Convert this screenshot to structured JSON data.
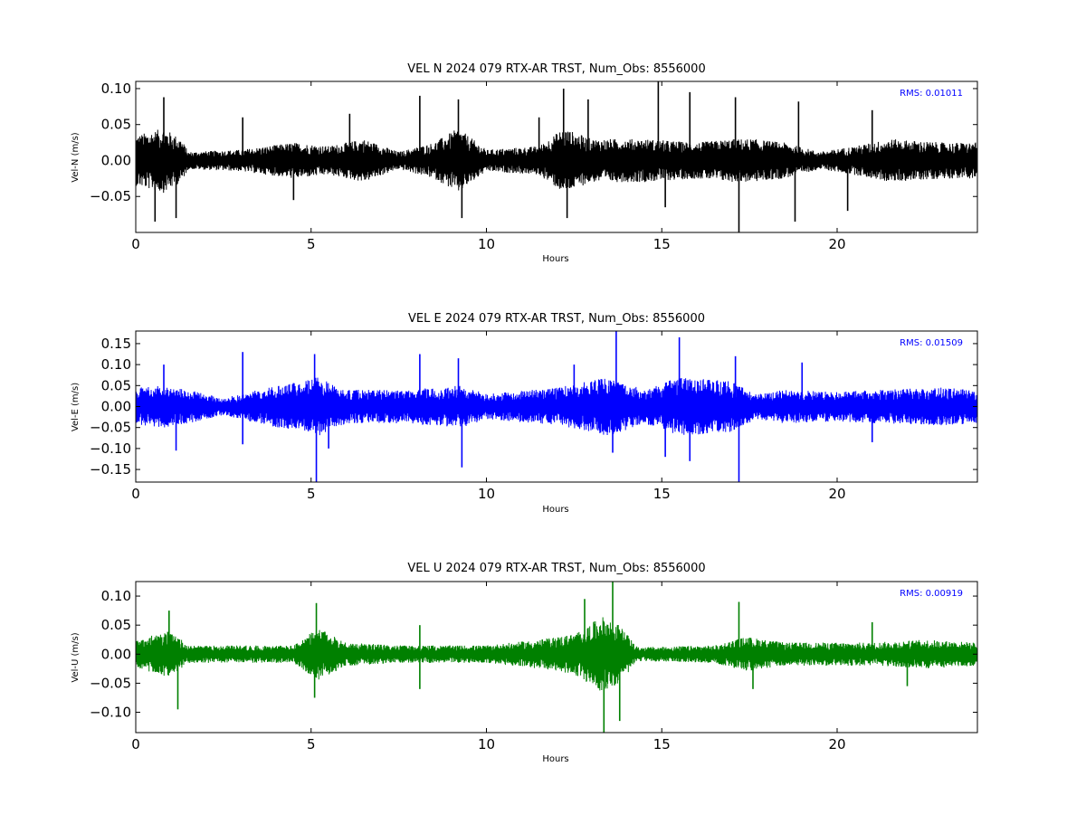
{
  "figure": {
    "background": "#ffffff",
    "axis_color": "#000000",
    "rms_color": "#0000ff"
  },
  "chart_data": [
    {
      "type": "line",
      "title": "VEL N 2024 079 RTX-AR  TRST, Num_Obs: 8556000",
      "xlabel": "Hours",
      "ylabel": "Vel-N (m/s)",
      "xlim": [
        0,
        24
      ],
      "ylim": [
        -0.1,
        0.11
      ],
      "xticks": [
        0,
        5,
        10,
        15,
        20
      ],
      "xtick_labels": [
        "0",
        "5",
        "10",
        "15",
        "20"
      ],
      "yticks": [
        -0.05,
        0.0,
        0.05,
        0.1
      ],
      "ytick_labels": [
        "−0.05",
        "0.00",
        "0.05",
        "0.10"
      ],
      "rms_label": "RMS:  0.01011",
      "rms": 0.01011,
      "color": "#000000",
      "grid": false,
      "noise_envelope": [
        {
          "x": 0.0,
          "a": 0.035
        },
        {
          "x": 0.8,
          "a": 0.045
        },
        {
          "x": 1.3,
          "a": 0.03
        },
        {
          "x": 1.5,
          "a": 0.012
        },
        {
          "x": 3.0,
          "a": 0.015
        },
        {
          "x": 4.5,
          "a": 0.025
        },
        {
          "x": 5.5,
          "a": 0.02
        },
        {
          "x": 6.5,
          "a": 0.03
        },
        {
          "x": 7.5,
          "a": 0.012
        },
        {
          "x": 8.5,
          "a": 0.025
        },
        {
          "x": 9.2,
          "a": 0.045
        },
        {
          "x": 10.0,
          "a": 0.015
        },
        {
          "x": 11.5,
          "a": 0.02
        },
        {
          "x": 12.2,
          "a": 0.045
        },
        {
          "x": 13.0,
          "a": 0.03
        },
        {
          "x": 14.5,
          "a": 0.03
        },
        {
          "x": 16.0,
          "a": 0.025
        },
        {
          "x": 17.0,
          "a": 0.03
        },
        {
          "x": 17.6,
          "a": 0.03
        },
        {
          "x": 18.5,
          "a": 0.025
        },
        {
          "x": 19.5,
          "a": 0.012
        },
        {
          "x": 20.5,
          "a": 0.02
        },
        {
          "x": 21.5,
          "a": 0.03
        },
        {
          "x": 23.0,
          "a": 0.025
        },
        {
          "x": 24.0,
          "a": 0.025
        }
      ],
      "spikes": [
        {
          "x": 0.55,
          "y": -0.085
        },
        {
          "x": 0.8,
          "y": 0.088
        },
        {
          "x": 1.15,
          "y": -0.08
        },
        {
          "x": 3.05,
          "y": 0.06
        },
        {
          "x": 4.5,
          "y": -0.055
        },
        {
          "x": 6.1,
          "y": 0.065
        },
        {
          "x": 8.1,
          "y": 0.09
        },
        {
          "x": 9.2,
          "y": 0.085
        },
        {
          "x": 9.3,
          "y": -0.08
        },
        {
          "x": 11.5,
          "y": 0.06
        },
        {
          "x": 12.2,
          "y": 0.1
        },
        {
          "x": 12.3,
          "y": -0.08
        },
        {
          "x": 12.9,
          "y": 0.085
        },
        {
          "x": 14.9,
          "y": 0.11
        },
        {
          "x": 15.1,
          "y": -0.065
        },
        {
          "x": 15.8,
          "y": 0.095
        },
        {
          "x": 17.2,
          "y": -0.1
        },
        {
          "x": 17.1,
          "y": 0.088
        },
        {
          "x": 18.8,
          "y": -0.085
        },
        {
          "x": 18.9,
          "y": 0.082
        },
        {
          "x": 20.3,
          "y": -0.07
        },
        {
          "x": 21.0,
          "y": 0.07
        }
      ]
    },
    {
      "type": "line",
      "title": "VEL E 2024 079 RTX-AR  TRST, Num_Obs: 8556000",
      "xlabel": "Hours",
      "ylabel": "Vel-E (m/s)",
      "xlim": [
        0,
        24
      ],
      "ylim": [
        -0.18,
        0.18
      ],
      "xticks": [
        0,
        5,
        10,
        15,
        20
      ],
      "xtick_labels": [
        "0",
        "5",
        "10",
        "15",
        "20"
      ],
      "yticks": [
        -0.15,
        -0.1,
        -0.05,
        0.0,
        0.05,
        0.1,
        0.15
      ],
      "ytick_labels": [
        "−0.15",
        "−0.10",
        "−0.05",
        "0.00",
        "0.05",
        "0.10",
        "0.15"
      ],
      "rms_label": "RMS:  0.01509",
      "rms": 0.01509,
      "color": "#0000ff",
      "grid": false,
      "noise_envelope": [
        {
          "x": 0.0,
          "a": 0.045
        },
        {
          "x": 0.8,
          "a": 0.05
        },
        {
          "x": 1.5,
          "a": 0.04
        },
        {
          "x": 2.5,
          "a": 0.02
        },
        {
          "x": 3.5,
          "a": 0.04
        },
        {
          "x": 5.2,
          "a": 0.07
        },
        {
          "x": 6.0,
          "a": 0.04
        },
        {
          "x": 7.5,
          "a": 0.04
        },
        {
          "x": 9.3,
          "a": 0.05
        },
        {
          "x": 10.0,
          "a": 0.03
        },
        {
          "x": 12.0,
          "a": 0.045
        },
        {
          "x": 13.5,
          "a": 0.07
        },
        {
          "x": 14.5,
          "a": 0.04
        },
        {
          "x": 15.5,
          "a": 0.07
        },
        {
          "x": 17.0,
          "a": 0.06
        },
        {
          "x": 17.7,
          "a": 0.03
        },
        {
          "x": 18.5,
          "a": 0.04
        },
        {
          "x": 20.0,
          "a": 0.035
        },
        {
          "x": 21.0,
          "a": 0.04
        },
        {
          "x": 23.0,
          "a": 0.045
        },
        {
          "x": 24.0,
          "a": 0.04
        }
      ],
      "spikes": [
        {
          "x": 0.8,
          "y": 0.1
        },
        {
          "x": 1.15,
          "y": -0.105
        },
        {
          "x": 3.05,
          "y": 0.13
        },
        {
          "x": 3.05,
          "y": -0.09
        },
        {
          "x": 5.1,
          "y": 0.125
        },
        {
          "x": 5.15,
          "y": -0.18
        },
        {
          "x": 5.5,
          "y": -0.1
        },
        {
          "x": 8.1,
          "y": 0.125
        },
        {
          "x": 9.2,
          "y": 0.115
        },
        {
          "x": 9.3,
          "y": -0.145
        },
        {
          "x": 12.5,
          "y": 0.1
        },
        {
          "x": 13.7,
          "y": 0.18
        },
        {
          "x": 13.6,
          "y": -0.11
        },
        {
          "x": 15.5,
          "y": 0.165
        },
        {
          "x": 15.1,
          "y": -0.12
        },
        {
          "x": 15.8,
          "y": -0.13
        },
        {
          "x": 17.2,
          "y": -0.18
        },
        {
          "x": 17.1,
          "y": 0.12
        },
        {
          "x": 19.0,
          "y": 0.105
        },
        {
          "x": 21.0,
          "y": -0.085
        }
      ]
    },
    {
      "type": "line",
      "title": "VEL U 2024 079 RTX-AR  TRST, Num_Obs: 8556000",
      "xlabel": "Hours",
      "ylabel": "Vel-U (m/s)",
      "xlim": [
        0,
        24
      ],
      "ylim": [
        -0.135,
        0.125
      ],
      "xticks": [
        0,
        5,
        10,
        15,
        20
      ],
      "xtick_labels": [
        "0",
        "5",
        "10",
        "15",
        "20"
      ],
      "yticks": [
        -0.1,
        -0.05,
        0.0,
        0.05,
        0.1
      ],
      "ytick_labels": [
        "−0.10",
        "−0.05",
        "0.00",
        "0.05",
        "0.10"
      ],
      "rms_label": "RMS:  0.00919",
      "rms": 0.00919,
      "color": "#008000",
      "grid": false,
      "noise_envelope": [
        {
          "x": 0.0,
          "a": 0.025
        },
        {
          "x": 1.0,
          "a": 0.04
        },
        {
          "x": 1.5,
          "a": 0.015
        },
        {
          "x": 4.5,
          "a": 0.015
        },
        {
          "x": 5.2,
          "a": 0.045
        },
        {
          "x": 6.0,
          "a": 0.02
        },
        {
          "x": 7.5,
          "a": 0.015
        },
        {
          "x": 8.5,
          "a": 0.015
        },
        {
          "x": 10.0,
          "a": 0.015
        },
        {
          "x": 11.5,
          "a": 0.025
        },
        {
          "x": 12.5,
          "a": 0.035
        },
        {
          "x": 13.3,
          "a": 0.065
        },
        {
          "x": 13.8,
          "a": 0.05
        },
        {
          "x": 14.3,
          "a": 0.012
        },
        {
          "x": 16.5,
          "a": 0.015
        },
        {
          "x": 17.4,
          "a": 0.03
        },
        {
          "x": 18.5,
          "a": 0.02
        },
        {
          "x": 20.0,
          "a": 0.02
        },
        {
          "x": 21.0,
          "a": 0.02
        },
        {
          "x": 22.5,
          "a": 0.025
        },
        {
          "x": 24.0,
          "a": 0.02
        }
      ],
      "spikes": [
        {
          "x": 0.95,
          "y": 0.075
        },
        {
          "x": 1.2,
          "y": -0.095
        },
        {
          "x": 5.15,
          "y": 0.088
        },
        {
          "x": 5.1,
          "y": -0.075
        },
        {
          "x": 8.1,
          "y": 0.05
        },
        {
          "x": 8.1,
          "y": -0.06
        },
        {
          "x": 12.8,
          "y": 0.095
        },
        {
          "x": 13.6,
          "y": 0.125
        },
        {
          "x": 13.35,
          "y": -0.135
        },
        {
          "x": 13.8,
          "y": -0.115
        },
        {
          "x": 17.2,
          "y": 0.09
        },
        {
          "x": 17.6,
          "y": -0.06
        },
        {
          "x": 21.0,
          "y": 0.055
        },
        {
          "x": 22.0,
          "y": -0.055
        }
      ]
    }
  ]
}
